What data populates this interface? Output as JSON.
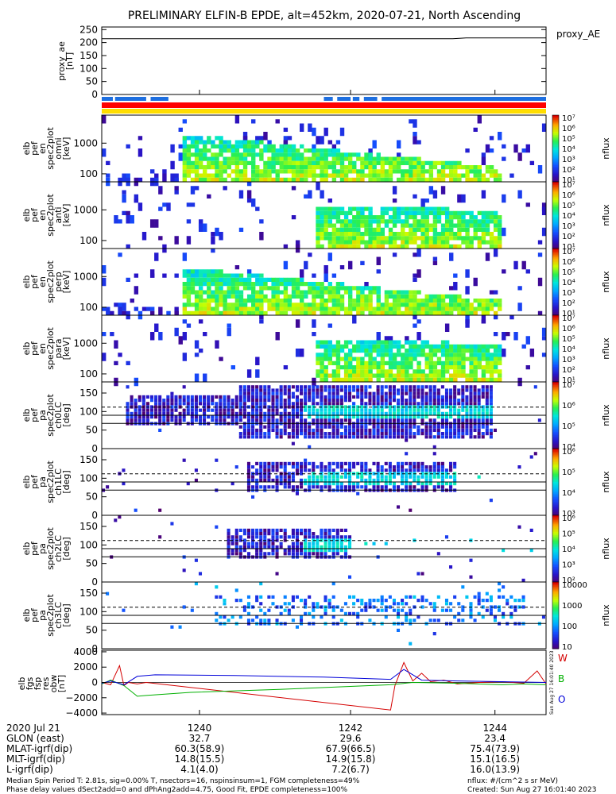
{
  "chart_data": {
    "type": "heatmap",
    "title": "PRELIMINARY ELFIN-B EPDE, alt=452km, 2020-07-21, North Ascending",
    "x_ticks": [
      "1240",
      "1242",
      "1244"
    ],
    "proxy_ae": {
      "ylabel_lines": [
        "proxy_ae",
        "[nT]"
      ],
      "yticks": [
        "250",
        "200",
        "150",
        "100",
        "50",
        "0"
      ],
      "ylim": [
        0,
        260
      ],
      "legend": "proxy_AE",
      "x": [
        0,
        0.79,
        0.82,
        1
      ],
      "y": [
        215,
        215,
        218,
        218
      ]
    },
    "spec_panels": [
      {
        "kind": "energy",
        "ylabel_lines": [
          "elb",
          "pef",
          "en",
          "spec2plot",
          "omni",
          "[keV]"
        ],
        "yticks": [
          "1000",
          "100"
        ],
        "cbar_label": "nflux",
        "cbar_ticks": [
          "10⁷",
          "10⁶",
          "10⁵",
          "10⁴",
          "10³",
          "10²",
          "10¹"
        ]
      },
      {
        "kind": "energy",
        "ylabel_lines": [
          "elb",
          "pef",
          "en",
          "spec2plot",
          "anti",
          "[keV]"
        ],
        "yticks": [
          "1000",
          "100"
        ],
        "cbar_label": "nflux",
        "cbar_ticks": [
          "10⁷",
          "10⁶",
          "10⁵",
          "10⁴",
          "10³",
          "10²",
          "10¹"
        ]
      },
      {
        "kind": "energy",
        "ylabel_lines": [
          "elb",
          "pef",
          "en",
          "spec2plot",
          "perp",
          "[keV]"
        ],
        "yticks": [
          "1000",
          "100"
        ],
        "cbar_label": "nflux",
        "cbar_ticks": [
          "10⁷",
          "10⁶",
          "10⁵",
          "10⁴",
          "10³",
          "10²",
          "10¹"
        ]
      },
      {
        "kind": "energy",
        "ylabel_lines": [
          "elb",
          "pef",
          "en",
          "spec2plot",
          "para",
          "[keV]"
        ],
        "yticks": [
          "1000",
          "100"
        ],
        "cbar_label": "nflux",
        "cbar_ticks": [
          "10⁷",
          "10⁶",
          "10⁵",
          "10⁴",
          "10³",
          "10²",
          "10¹"
        ]
      },
      {
        "kind": "pitch",
        "ylabel_lines": [
          "elb",
          "pef",
          "pa",
          "spec2plot",
          "ch0LC",
          "[deg]"
        ],
        "yticks": [
          "150",
          "100",
          "50",
          "0"
        ],
        "cbar_label": "nflux",
        "cbar_ticks": [
          "10⁷",
          "10⁶",
          "10⁵",
          "10⁴"
        ]
      },
      {
        "kind": "pitch",
        "ylabel_lines": [
          "elb",
          "pef",
          "pa",
          "spec2plot",
          "ch1LC",
          "[deg]"
        ],
        "yticks": [
          "150",
          "100",
          "50",
          "0"
        ],
        "cbar_label": "nflux",
        "cbar_ticks": [
          "10⁶",
          "10⁵",
          "10⁴",
          "10³"
        ]
      },
      {
        "kind": "pitch",
        "ylabel_lines": [
          "elb",
          "pef",
          "pa",
          "spec2plot",
          "ch2LC",
          "[deg]"
        ],
        "yticks": [
          "150",
          "100",
          "50",
          "0"
        ],
        "cbar_label": "nflux",
        "cbar_ticks": [
          "10⁶",
          "10⁵",
          "10⁴",
          "10³",
          "10²"
        ]
      },
      {
        "kind": "pitch",
        "ylabel_lines": [
          "elb",
          "pef",
          "pa",
          "spec2plot",
          "ch3LC",
          "[deg]"
        ],
        "yticks": [
          "150",
          "100",
          "50",
          "0"
        ],
        "cbar_label": "nflux",
        "cbar_ticks": [
          "10000",
          "1000",
          "100",
          "10"
        ]
      }
    ],
    "bfield": {
      "ylabel_lines": [
        "elb",
        "fgs",
        "fsp",
        "res",
        "obw",
        "[nT]"
      ],
      "yticks": [
        "4000",
        "2000",
        "0",
        "−2000",
        "−4000"
      ],
      "ylim": [
        -4200,
        4200
      ],
      "legend": [
        {
          "name": "W",
          "color": "#d40000"
        },
        {
          "name": "B",
          "color": "#00b000"
        },
        {
          "name": "O",
          "color": "#0000d8"
        }
      ],
      "series": [
        {
          "name": "W",
          "color": "#d40000",
          "x": [
            0,
            0.02,
            0.04,
            0.05,
            0.06,
            0.08,
            0.1,
            0.65,
            0.66,
            0.68,
            0.7,
            0.72,
            0.74,
            0.77,
            0.8,
            0.85,
            0.9,
            0.95,
            0.98,
            1
          ],
          "y": [
            0,
            -300,
            2200,
            -400,
            0,
            -200,
            0,
            -3600,
            -400,
            2600,
            200,
            1200,
            100,
            300,
            -200,
            0,
            100,
            -100,
            1500,
            -200
          ]
        },
        {
          "name": "B",
          "color": "#00b000",
          "x": [
            0,
            0.02,
            0.05,
            0.08,
            0.1,
            0.2,
            0.4,
            0.65,
            0.7,
            0.8,
            0.9,
            0.95,
            1
          ],
          "y": [
            -200,
            300,
            -400,
            -1800,
            -1700,
            -1300,
            -900,
            -300,
            0,
            -100,
            -300,
            -200,
            -300
          ]
        },
        {
          "name": "O",
          "color": "#0000d8",
          "x": [
            0,
            0.02,
            0.05,
            0.08,
            0.12,
            0.3,
            0.5,
            0.65,
            0.68,
            0.72,
            0.8,
            1
          ],
          "y": [
            -100,
            200,
            -300,
            800,
            1000,
            900,
            700,
            400,
            1700,
            300,
            200,
            0
          ]
        }
      ]
    },
    "bottom_table": {
      "rows": [
        [
          "2020 Jul 21",
          "1240",
          "1242",
          "1244"
        ],
        [
          "GLON (east)",
          "32.7",
          "29.6",
          "23.4"
        ],
        [
          "MLAT-igrf(dip)",
          "60.3(58.9)",
          "67.9(66.5)",
          "75.4(73.9)"
        ],
        [
          "MLT-igrf(dip)",
          "14.8(15.5)",
          "14.9(15.8)",
          "15.1(16.5)"
        ],
        [
          "L-igrf(dip)",
          "4.1(4.0)",
          "7.2(6.7)",
          "16.0(13.9)"
        ]
      ]
    },
    "footer": {
      "line1": "Median Spin Period T: 2.81s, sig=0.00% T, nsectors=16, nspinsinsum=1, FGM completeness=49%",
      "line2": "Phase delay values dSect2add=0 and dPhAng2add=4.75, Good Fit, EPDE completeness=100%",
      "units": "nflux: #/(cm^2 s sr MeV)",
      "created": "Created: Sun Aug 27 16:01:40 2023",
      "side_stamp": "Sun Aug 27 16:01:40 2023"
    },
    "colors": {
      "red": "#ff0000",
      "yellow": "#ffdd00",
      "blue_bar": "#1e6fe0",
      "frame": "#000000"
    }
  }
}
